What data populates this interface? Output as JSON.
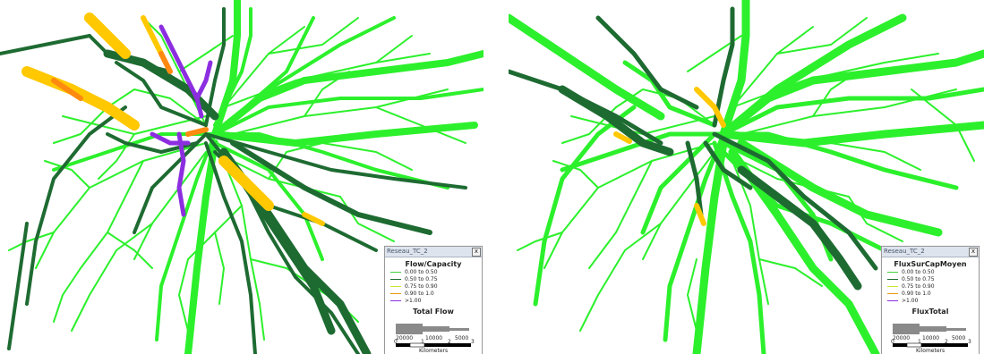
{
  "left_panel": {
    "legend": {
      "window_title": "Reseau_TC_2",
      "close_glyph": "x",
      "ratio_title": "Flow/Capacity",
      "ratio_items": [
        {
          "label": "0.00 to 0.50",
          "color": "#3fd23f"
        },
        {
          "label": "0.50 to 0.75",
          "color": "#1e6b32"
        },
        {
          "label": "0.75 to 0.90",
          "color": "#c8e830"
        },
        {
          "label": "0.90 to 1.0",
          "color": "#e89a10"
        },
        {
          "label": ">1.00",
          "color": "#8c2ee0"
        }
      ],
      "flow_title": "Total Flow",
      "flow_values": [
        "20000",
        "10000",
        "5000"
      ],
      "scale_ticks": [
        "0",
        "1",
        "2",
        "3"
      ],
      "scale_unit": "Kilometers"
    }
  },
  "right_panel": {
    "legend": {
      "window_title": "Reseau_TC_2",
      "close_glyph": "x",
      "ratio_title": "FluxSurCapMoyen",
      "ratio_items": [
        {
          "label": "0.00 to 0.50",
          "color": "#3fd23f"
        },
        {
          "label": "0.50 to 0.75",
          "color": "#1e6b32"
        },
        {
          "label": "0.75 to 0.90",
          "color": "#c8e830"
        },
        {
          "label": "0.90 to 1.0",
          "color": "#e89a10"
        },
        {
          "label": ">1.00",
          "color": "#8c2ee0"
        }
      ],
      "flow_title": "FluxTotal",
      "flow_values": [
        "20000",
        "10000",
        "5000"
      ],
      "scale_ticks": [
        "0",
        "1",
        "2",
        "3"
      ],
      "scale_unit": "Kilometers"
    }
  },
  "colors": {
    "light_green": "#2cf02c",
    "dark_green": "#1e6b32",
    "yellow": "#ffc800",
    "orange": "#ff8a10",
    "purple": "#8c2ee0"
  }
}
